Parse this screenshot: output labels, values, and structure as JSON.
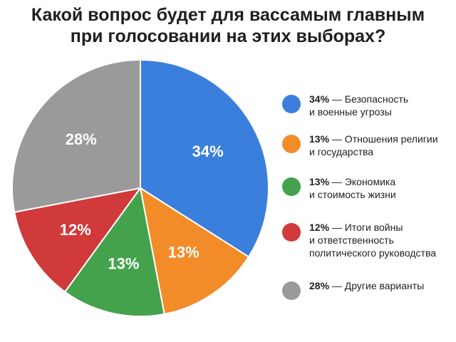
{
  "title_line1": "Какой вопрос будет для вассамым главным",
  "title_line2": "при голосовании на этих выборах?",
  "chart_data": {
    "type": "pie",
    "title": "Какой вопрос будет для вассамым главным при голосовании на этих выборах?",
    "slices": [
      {
        "value": 34,
        "label": "34%",
        "legend_pct": "34%",
        "legend_text": [
          "Безопасность",
          "и военные угрозы"
        ],
        "color": "#3a7fdc"
      },
      {
        "value": 13,
        "label": "13%",
        "legend_pct": "13%",
        "legend_text": [
          "Отношения религии",
          "и государства"
        ],
        "color": "#f28c28"
      },
      {
        "value": 13,
        "label": "13%",
        "legend_pct": "13%",
        "legend_text": [
          "Экономика",
          "и стоимость жизни"
        ],
        "color": "#43a24b"
      },
      {
        "value": 12,
        "label": "12%",
        "legend_pct": "12%",
        "legend_text": [
          "Итоги войны",
          "и ответственность",
          "политического руководства"
        ],
        "color": "#d03a3a"
      },
      {
        "value": 28,
        "label": "28%",
        "legend_pct": "28%",
        "legend_text": [
          "Другие варианты"
        ],
        "color": "#9a9a9a"
      }
    ],
    "legend_position": "right"
  }
}
